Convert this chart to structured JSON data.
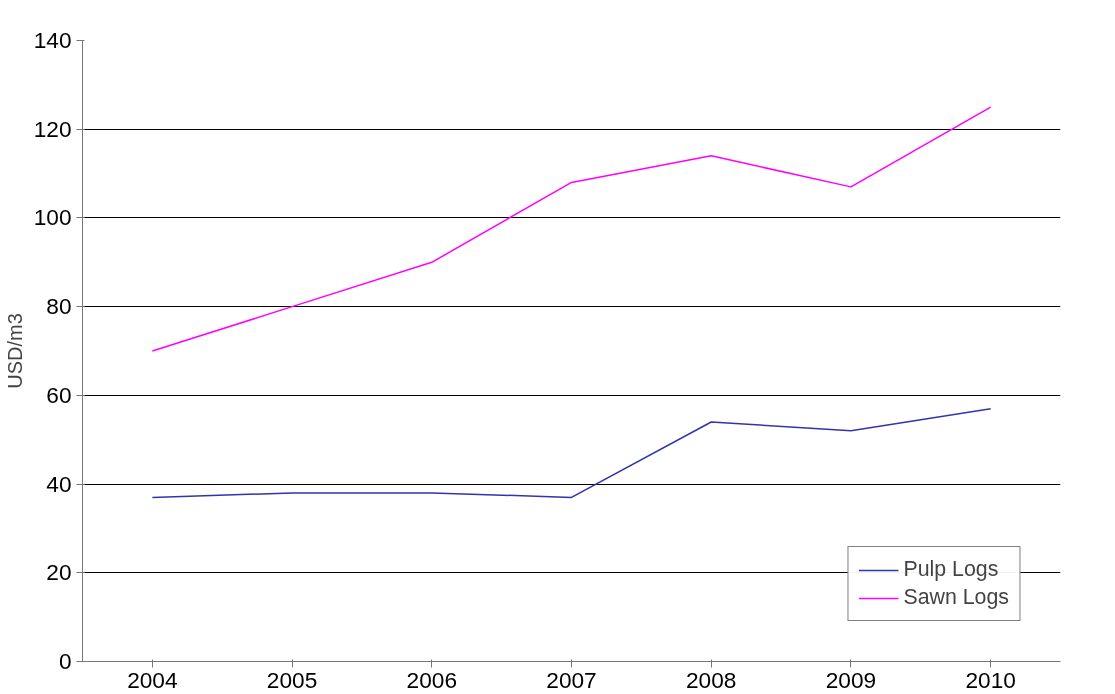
{
  "chart_data": {
    "type": "line",
    "ylabel": "USD/m3",
    "categories": [
      "2004",
      "2005",
      "2006",
      "2007",
      "2008",
      "2009",
      "2010"
    ],
    "series": [
      {
        "name": "Pulp Logs",
        "color": "#3333aa",
        "values": [
          37,
          38,
          38,
          37,
          54,
          52,
          57
        ]
      },
      {
        "name": "Sawn Logs",
        "color": "#ff00ff",
        "values": [
          70,
          80,
          90,
          108,
          114,
          107,
          125
        ]
      }
    ],
    "ylim": [
      0,
      140
    ],
    "yticks": [
      0,
      20,
      40,
      60,
      80,
      100,
      120,
      140
    ],
    "grid": "y",
    "legend": "bottom right",
    "marker": "none",
    "line_style": "solid"
  }
}
